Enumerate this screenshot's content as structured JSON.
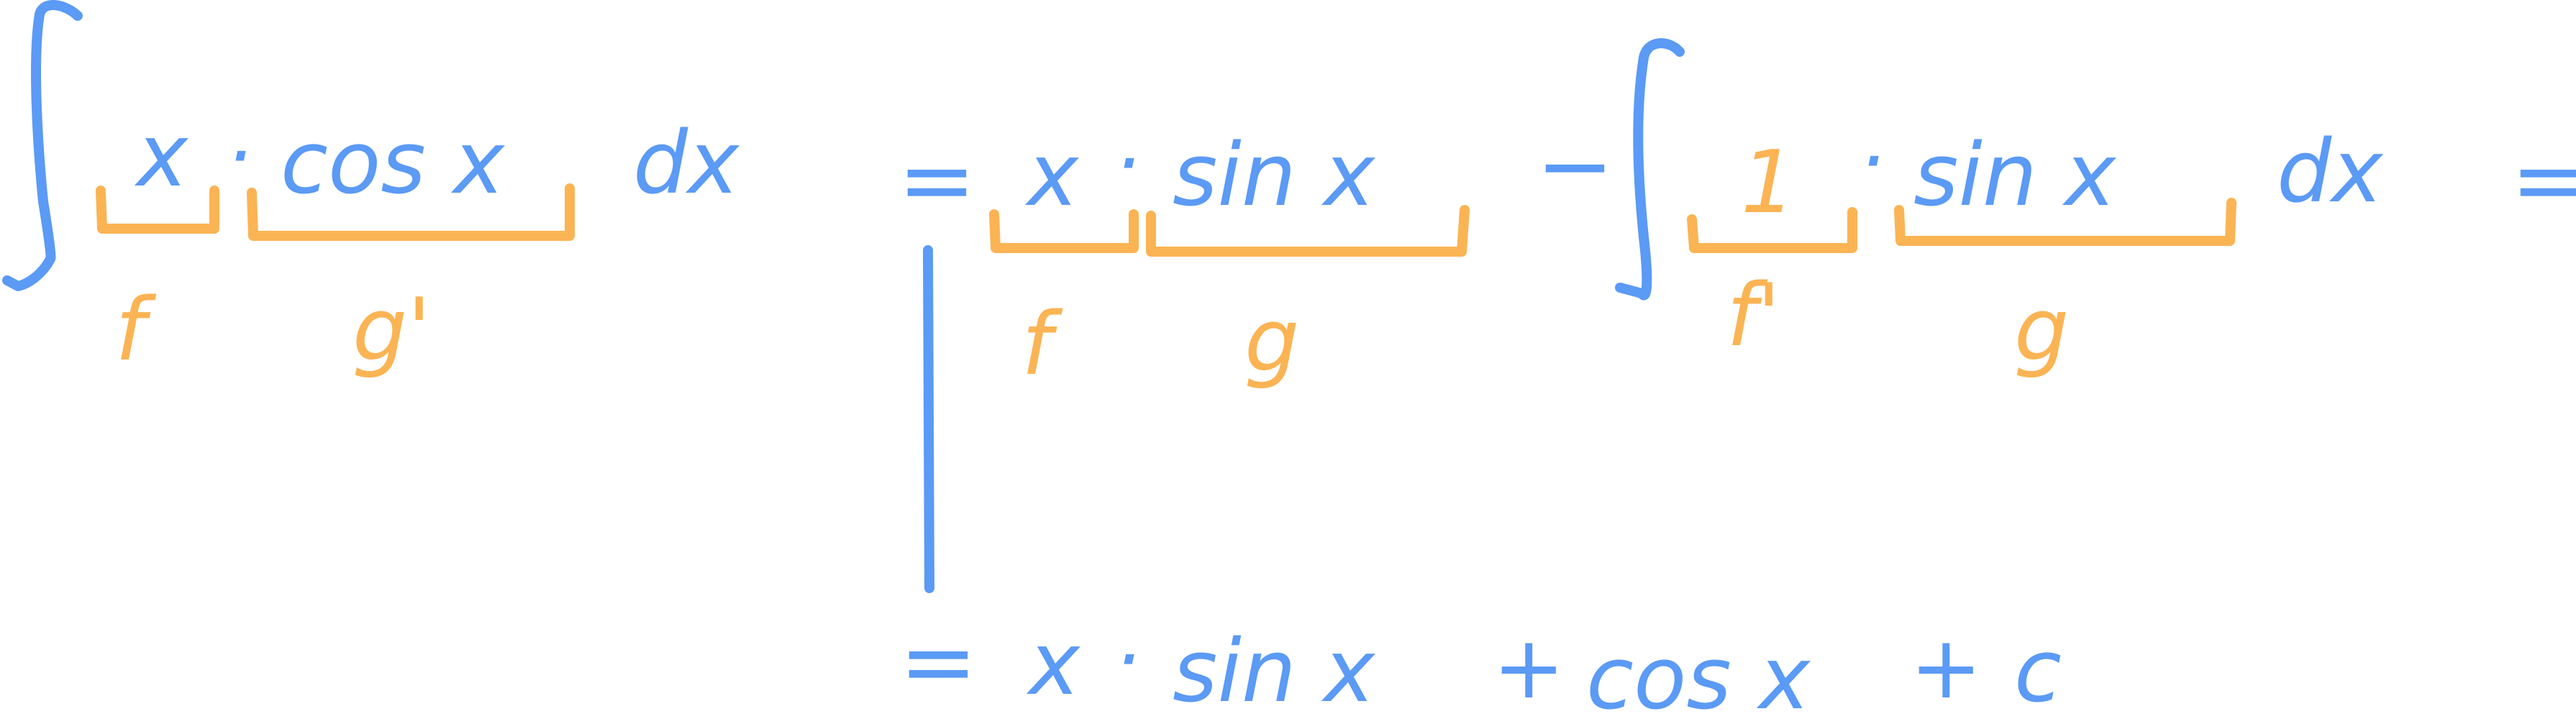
{
  "colors": {
    "ink_blue": "#5b9af5",
    "ink_orange": "#fbb454",
    "background": "#ffffff"
  },
  "line1": {
    "lhs": {
      "u_term": "x",
      "dot": "·",
      "dv_term": "cos x",
      "differential": "dx",
      "u_label": "f",
      "dv_label": "g'"
    },
    "equals": "=",
    "uv": {
      "u_term": "x",
      "dot": "·",
      "v_term": "sin x",
      "u_label": "f",
      "v_label": "g"
    },
    "minus": "−",
    "rhs_integral": {
      "du_term": "1",
      "dot": "·",
      "v_term": "sin x",
      "differential": "dx",
      "du_label": "f'",
      "v_label": "g"
    },
    "trailing_equals": "="
  },
  "line2": {
    "equals": "=",
    "x": "x",
    "dot": "·",
    "sin": "sin x",
    "plus1": "+",
    "cos": "cos x",
    "plus2": "+",
    "constant": "c"
  }
}
